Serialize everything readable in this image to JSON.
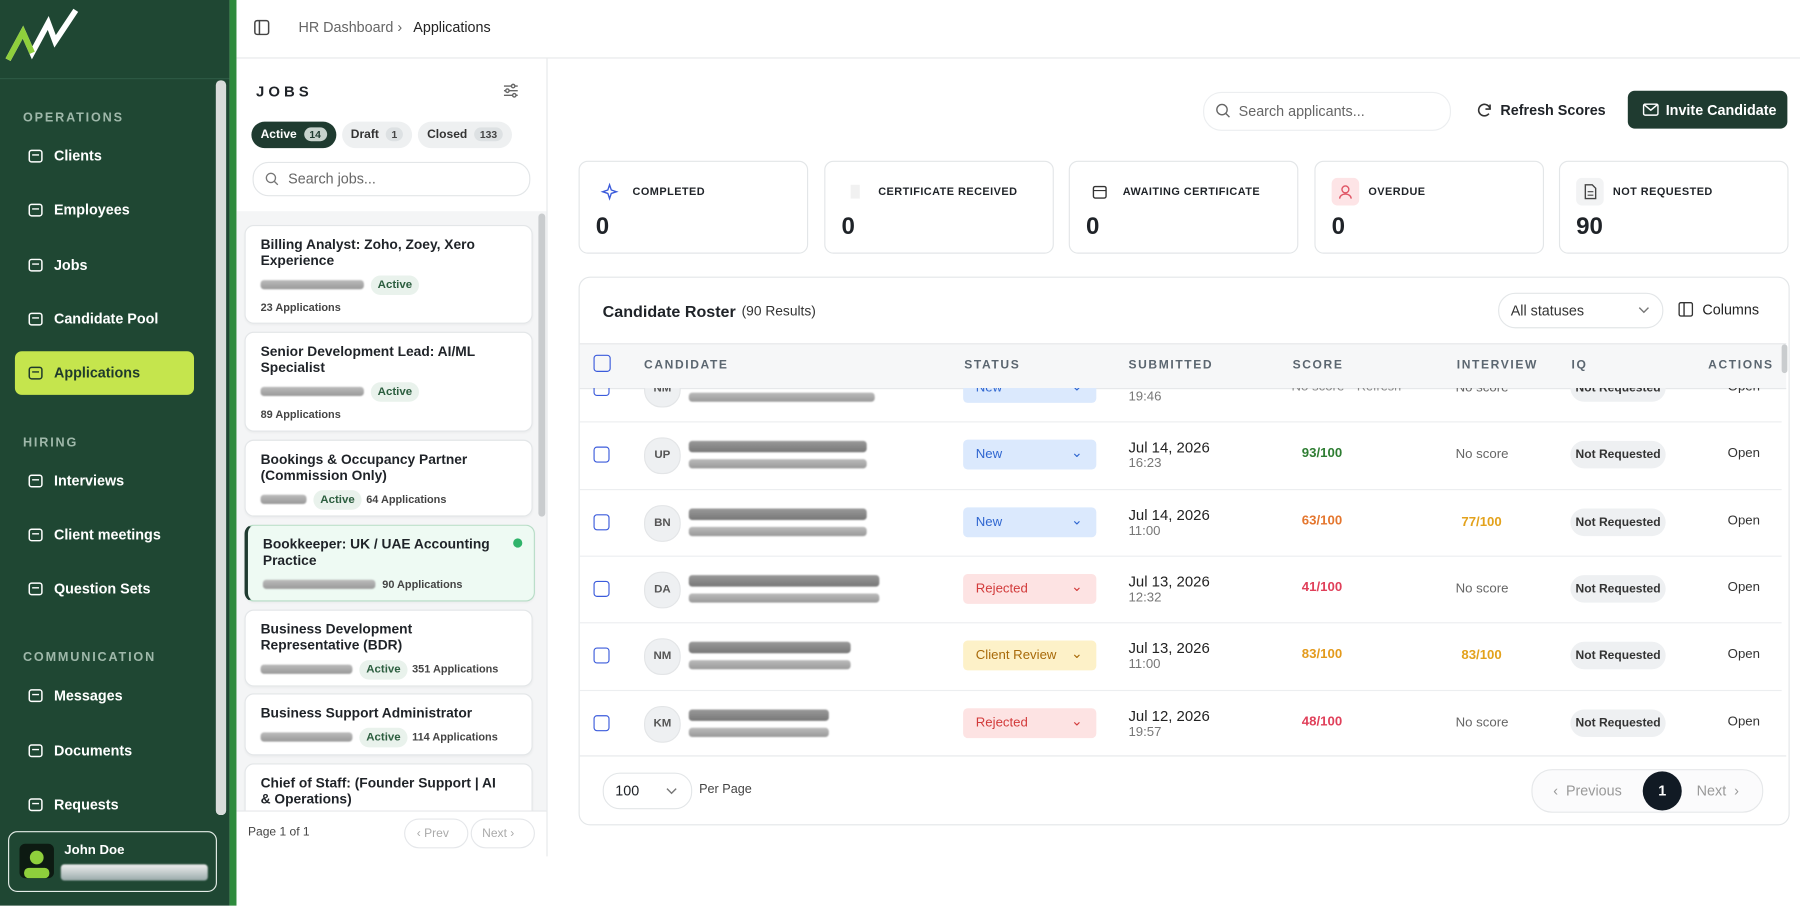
{
  "sidebar": {
    "sections": [
      {
        "label": "OPERATIONS",
        "items": [
          "Clients",
          "Employees",
          "Jobs",
          "Candidate Pool",
          "Applications"
        ]
      },
      {
        "label": "HIRING",
        "items": [
          "Interviews",
          "Client meetings",
          "Question Sets"
        ]
      },
      {
        "label": "COMMUNICATION",
        "items": [
          "Messages",
          "Documents",
          "Requests"
        ]
      }
    ],
    "user": "John Doe"
  },
  "breadcrumb": [
    "HR Dashboard",
    "Applications"
  ],
  "jobs_panel": {
    "title": "JOBS",
    "tabs": [
      {
        "label": "Active",
        "count": 14
      },
      {
        "label": "Draft",
        "count": 1
      },
      {
        "label": "Closed",
        "count": 133
      }
    ],
    "search_placeholder": "Search jobs...",
    "jobs": [
      {
        "title": "Billing Analyst: Zoho, Zoey, Xero Experience",
        "status": "Active",
        "applications": "23 Applications"
      },
      {
        "title": "Senior Development Lead: AI/ML Specialist",
        "status": "Active",
        "applications": "89 Applications"
      },
      {
        "title": "Bookings & Occupancy Partner (Commission Only)",
        "status": "Active",
        "applications": "64 Applications"
      },
      {
        "title": "Bookkeeper: UK / UAE Accounting Practice",
        "applications": "90 Applications"
      },
      {
        "title": "Business Development Representative (BDR)",
        "status": "Active",
        "applications": "351 Applications"
      },
      {
        "title": "Business Support Administrator",
        "status": "Active",
        "applications": "114 Applications"
      },
      {
        "title": "Chief of Staff: (Founder Support | AI & Operations)"
      }
    ],
    "footer": {
      "page": "Page 1 of 1",
      "prev": "Prev",
      "next": "Next"
    }
  },
  "toolbar": {
    "search_placeholder": "Search applicants...",
    "refresh": "Refresh Scores",
    "invite": "Invite Candidate"
  },
  "stats": [
    {
      "label": "COMPLETED",
      "value": 0
    },
    {
      "label": "CERTIFICATE RECEIVED",
      "value": 0
    },
    {
      "label": "AWAITING CERTIFICATE",
      "value": 0
    },
    {
      "label": "OVERDUE",
      "value": 0
    },
    {
      "label": "NOT REQUESTED",
      "value": 90
    }
  ],
  "roster": {
    "title": "Candidate Roster",
    "count": "(90 Results)",
    "filter": "All statuses",
    "columns_button": "Columns",
    "headers": [
      "CANDIDATE",
      "STATUS",
      "SUBMITTED",
      "SCORE",
      "INTERVIEW",
      "IQ",
      "ACTIONS"
    ],
    "rows": [
      {
        "initials": "NM",
        "status": "New",
        "time": "19:46",
        "score": "No score",
        "score_action": "Refresh",
        "interview": "No score",
        "iq": "Not Requested",
        "action": "Open"
      },
      {
        "initials": "UP",
        "status": "New",
        "date": "Jul 14, 2026",
        "time": "16:23",
        "score": "93/100",
        "interview": "No score",
        "iq": "Not Requested",
        "action": "Open"
      },
      {
        "initials": "BN",
        "status": "New",
        "date": "Jul 14, 2026",
        "time": "11:00",
        "score": "63/100",
        "interview": "77/100",
        "iq": "Not Requested",
        "action": "Open"
      },
      {
        "initials": "DA",
        "status": "Rejected",
        "date": "Jul 13, 2026",
        "time": "12:32",
        "score": "41/100",
        "interview": "No score",
        "iq": "Not Requested",
        "action": "Open"
      },
      {
        "initials": "NM",
        "status": "Client Review",
        "date": "Jul 13, 2026",
        "time": "11:00",
        "score": "83/100",
        "interview": "83/100",
        "iq": "Not Requested",
        "action": "Open"
      },
      {
        "initials": "KM",
        "status": "Rejected",
        "date": "Jul 12, 2026",
        "time": "19:57",
        "score": "48/100",
        "interview": "No score",
        "iq": "Not Requested",
        "action": "Open"
      }
    ],
    "footer": {
      "per_page_value": "100",
      "per_page": "Per Page",
      "previous": "Previous",
      "page": "1",
      "next": "Next"
    }
  }
}
